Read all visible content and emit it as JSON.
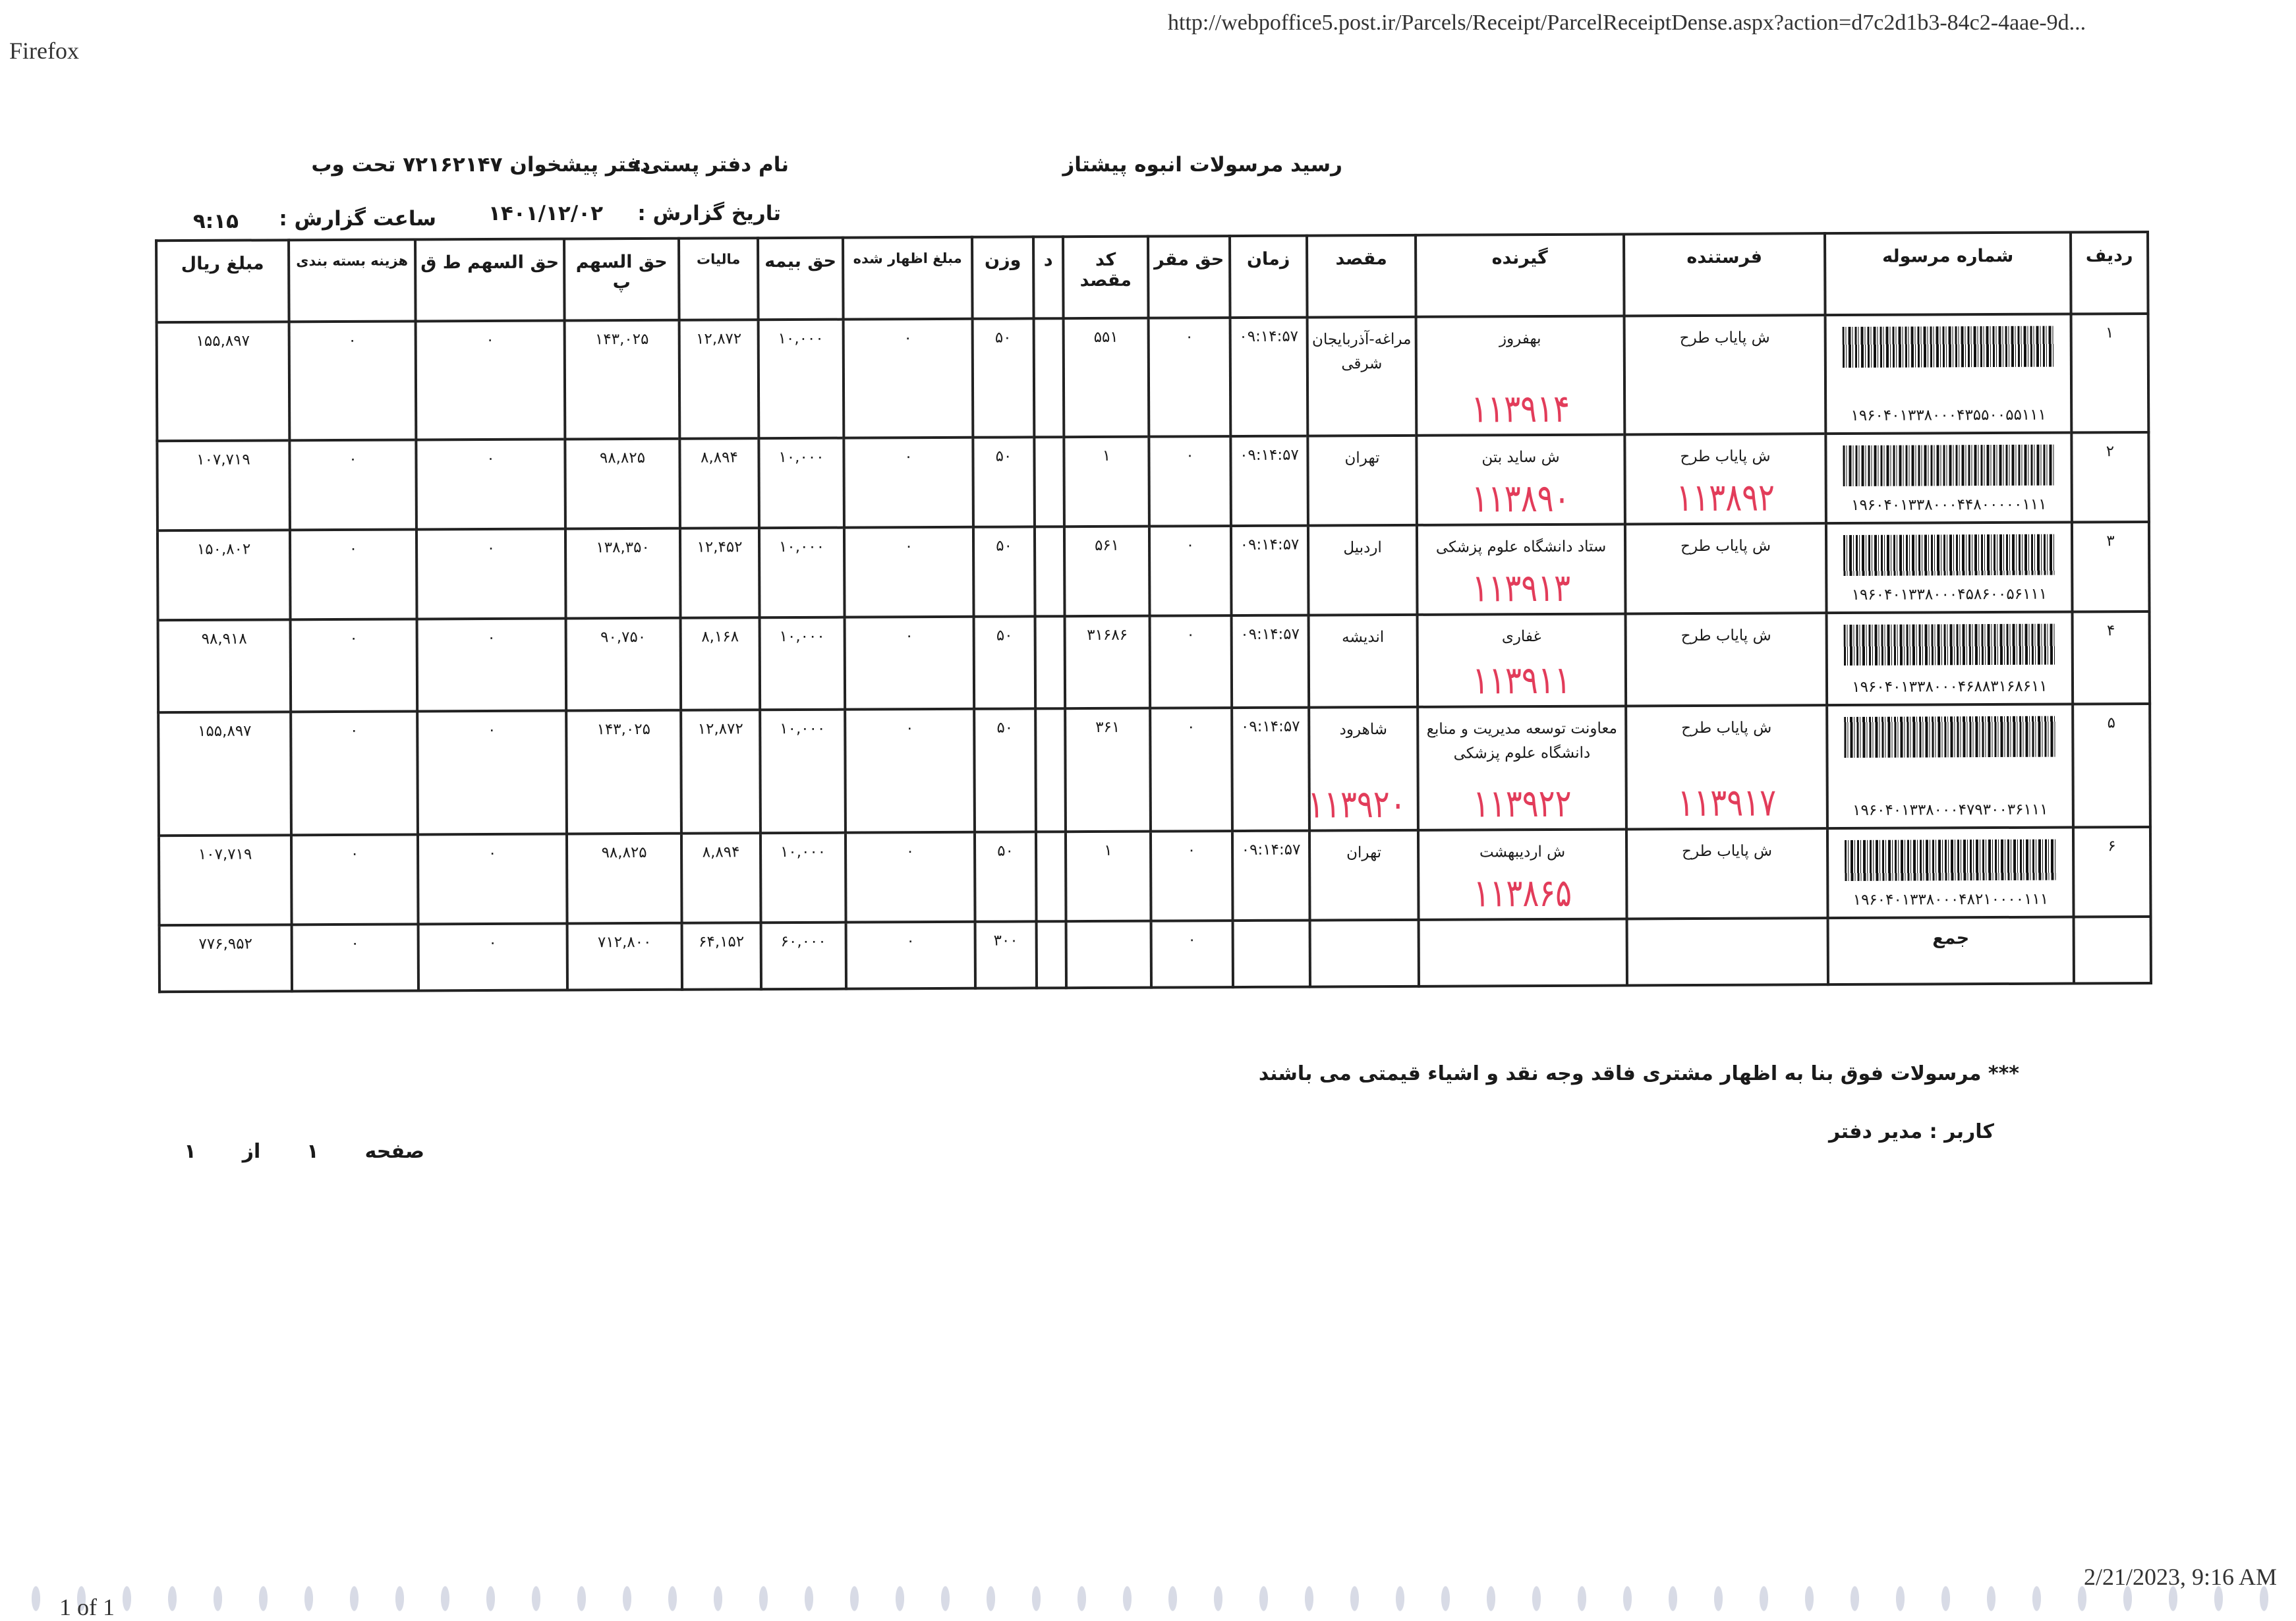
{
  "browser": {
    "app_name": "Firefox",
    "url": "http://webpoffice5.post.ir/Parcels/Receipt/ParcelReceiptDense.aspx?action=d7c2d1b3-84c2-4aae-9d...",
    "page_count": "1 of 1",
    "print_datetime": "2/21/2023, 9:16 AM"
  },
  "report": {
    "title": "رسید مرسولات انبوه  پیشتاز",
    "office_label": "نام دفتر پستی:",
    "office_name": "دفتر پیشخوان ۷۲۱۶۲۱۴۷ تحت وب",
    "date_label": "تاریخ گزارش :",
    "date": "۱۴۰۱/۱۲/۰۲",
    "time_label": "ساعت گزارش :",
    "time": "۹:۱۵"
  },
  "table": {
    "headers": {
      "row_no": "ردیف",
      "parcel_no": "شماره مرسوله",
      "sender": "فرستنده",
      "receiver": "گیرنده",
      "destination": "مقصد",
      "time": "زمان",
      "hq_fee": "حق مقر",
      "dest_code": "کد مقصد",
      "d": "د",
      "weight": "وزن",
      "declared": "مبلغ اظهار شده",
      "insurance": "حق بیمه",
      "tax": "مالیات",
      "share_p": "حق السهم پ",
      "share_tq": "حق السهم ط ق",
      "packing": "هزینه بسته بندی",
      "amount": "مبلغ ریال"
    },
    "rows": [
      {
        "row_no": "۱",
        "parcel_no": "۱۹۶۰۴۰۱۳۳۸۰۰۰۴۳۵۵۰۰۵۵۱۱۱",
        "sender": "ش پایاب طرح",
        "sender_note": "",
        "receiver": "بهفروز",
        "receiver_note": "۱۱۳۹۱۴",
        "destination": "مراغه-آذربایجان شرقی",
        "destination_note": "",
        "time": "۰۹:۱۴:۵۷",
        "hq_fee": "۰",
        "dest_code": "۵۵۱",
        "d": "",
        "weight": "۵۰",
        "declared": "۰",
        "insurance": "۱۰,۰۰۰",
        "tax": "۱۲,۸۷۲",
        "share_p": "۱۴۳,۰۲۵",
        "share_tq": "۰",
        "packing": "۰",
        "amount": "۱۵۵,۸۹۷"
      },
      {
        "row_no": "۲",
        "parcel_no": "۱۹۶۰۴۰۱۳۳۸۰۰۰۴۴۸۰۰۰۰۰۱۱۱",
        "sender": "ش پایاب طرح",
        "sender_note": "۱۱۳۸۹۲",
        "receiver": "ش ساید بتن",
        "receiver_note": "۱۱۳۸۹۰",
        "destination": "تهران",
        "destination_note": "",
        "time": "۰۹:۱۴:۵۷",
        "hq_fee": "۰",
        "dest_code": "۱",
        "d": "",
        "weight": "۵۰",
        "declared": "۰",
        "insurance": "۱۰,۰۰۰",
        "tax": "۸,۸۹۴",
        "share_p": "۹۸,۸۲۵",
        "share_tq": "۰",
        "packing": "۰",
        "amount": "۱۰۷,۷۱۹"
      },
      {
        "row_no": "۳",
        "parcel_no": "۱۹۶۰۴۰۱۳۳۸۰۰۰۴۵۸۶۰۰۵۶۱۱۱",
        "sender": "ش پایاب طرح",
        "sender_note": "",
        "receiver": "ستاد دانشگاه علوم پزشکی",
        "receiver_note": "۱۱۳۹۱۳",
        "destination": "اردبیل",
        "destination_note": "",
        "time": "۰۹:۱۴:۵۷",
        "hq_fee": "۰",
        "dest_code": "۵۶۱",
        "d": "",
        "weight": "۵۰",
        "declared": "۰",
        "insurance": "۱۰,۰۰۰",
        "tax": "۱۲,۴۵۲",
        "share_p": "۱۳۸,۳۵۰",
        "share_tq": "۰",
        "packing": "۰",
        "amount": "۱۵۰,۸۰۲"
      },
      {
        "row_no": "۴",
        "parcel_no": "۱۹۶۰۴۰۱۳۳۸۰۰۰۴۶۸۸۳۱۶۸۶۱۱",
        "sender": "ش پایاب طرح",
        "sender_note": "",
        "receiver": "غفاری",
        "receiver_note": "۱۱۳۹۱۱",
        "destination": "اندیشه",
        "destination_note": "",
        "time": "۰۹:۱۴:۵۷",
        "hq_fee": "۰",
        "dest_code": "۳۱۶۸۶",
        "d": "",
        "weight": "۵۰",
        "declared": "۰",
        "insurance": "۱۰,۰۰۰",
        "tax": "۸,۱۶۸",
        "share_p": "۹۰,۷۵۰",
        "share_tq": "۰",
        "packing": "۰",
        "amount": "۹۸,۹۱۸"
      },
      {
        "row_no": "۵",
        "parcel_no": "۱۹۶۰۴۰۱۳۳۸۰۰۰۴۷۹۳۰۰۳۶۱۱۱",
        "sender": "ش پایاب طرح",
        "sender_note": "۱۱۳۹۱۷",
        "receiver": "معاونت توسعه مدیریت و منابع دانشگاه علوم پزشکی",
        "receiver_note": "۱۱۳۹۲۲",
        "destination": "شاهرود",
        "destination_note": "۱۱۳۹۲۰",
        "time": "۰۹:۱۴:۵۷",
        "hq_fee": "۰",
        "dest_code": "۳۶۱",
        "d": "",
        "weight": "۵۰",
        "declared": "۰",
        "insurance": "۱۰,۰۰۰",
        "tax": "۱۲,۸۷۲",
        "share_p": "۱۴۳,۰۲۵",
        "share_tq": "۰",
        "packing": "۰",
        "amount": "۱۵۵,۸۹۷"
      },
      {
        "row_no": "۶",
        "parcel_no": "۱۹۶۰۴۰۱۳۳۸۰۰۰۴۸۲۱۰۰۰۰۱۱۱",
        "sender": "ش پایاب طرح",
        "sender_note": "",
        "receiver": "ش اردیبهشت",
        "receiver_note": "۱۱۳۸۶۵",
        "destination": "تهران",
        "destination_note": "",
        "time": "۰۹:۱۴:۵۷",
        "hq_fee": "۰",
        "dest_code": "۱",
        "d": "",
        "weight": "۵۰",
        "declared": "۰",
        "insurance": "۱۰,۰۰۰",
        "tax": "۸,۸۹۴",
        "share_p": "۹۸,۸۲۵",
        "share_tq": "۰",
        "packing": "۰",
        "amount": "۱۰۷,۷۱۹"
      }
    ],
    "total": {
      "label": "جمع",
      "hq_fee": "۰",
      "weight": "۳۰۰",
      "declared": "۰",
      "insurance": "۶۰,۰۰۰",
      "tax": "۶۴,۱۵۲",
      "share_p": "۷۱۲,۸۰۰",
      "share_tq": "۰",
      "packing": "۰",
      "amount": "۷۷۶,۹۵۲"
    }
  },
  "footer": {
    "disclaimer": "*** مرسولات فوق  بنا به اظهار مشتری فاقد وجه نقد و اشیاء قیمتی می باشند",
    "user": "کاربر : مدیر دفتر",
    "page_label": "صفحه",
    "page": "۱",
    "of_label": "از",
    "pages": "۱"
  },
  "colors": {
    "handwriting": "#e23c5a",
    "ink": "#1a1a1a"
  }
}
